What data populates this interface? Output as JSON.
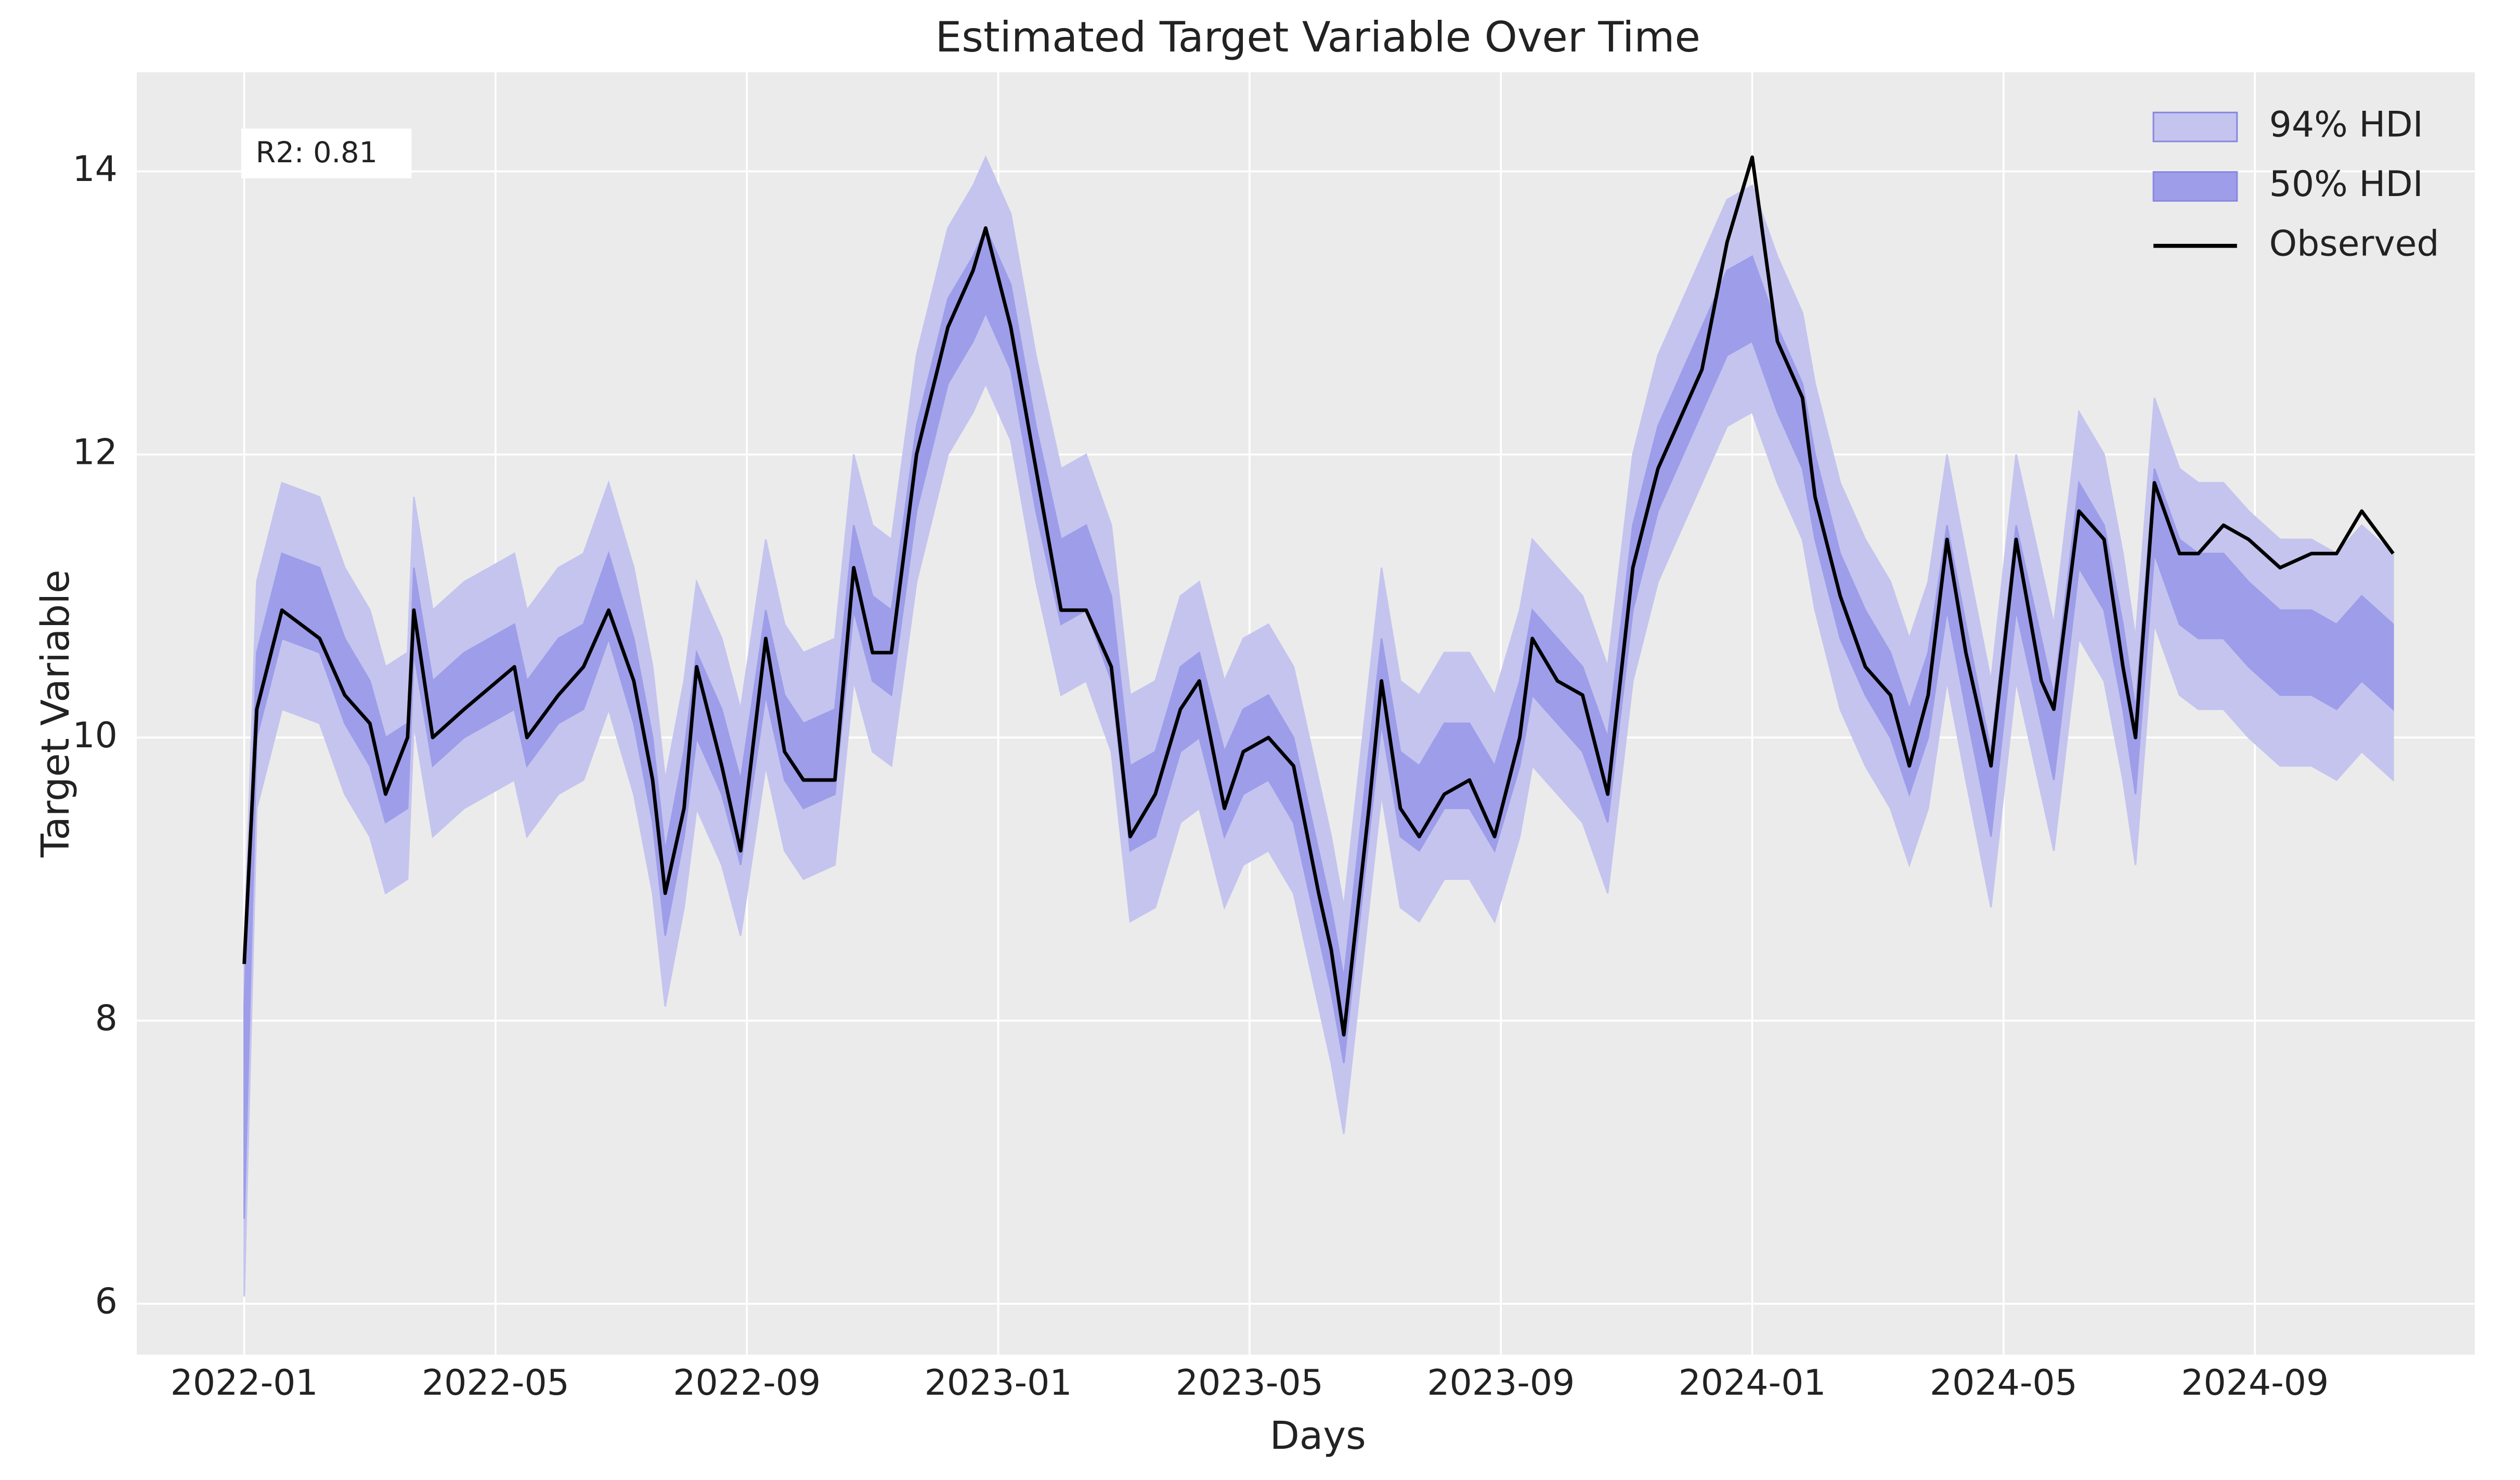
{
  "chart_data": {
    "type": "line-band",
    "title": "Estimated Target Variable Over Time",
    "x_label": "Days",
    "y_label": "Target Variable",
    "annotation": "R2: 0.81",
    "xlim": [
      -1.71,
      35.5
    ],
    "ylim": [
      5.64,
      14.7
    ],
    "xticks": [
      {
        "value": 0,
        "label": "2022-01"
      },
      {
        "value": 4,
        "label": "2022-05"
      },
      {
        "value": 8,
        "label": "2022-09"
      },
      {
        "value": 12,
        "label": "2023-01"
      },
      {
        "value": 16,
        "label": "2023-05"
      },
      {
        "value": 20,
        "label": "2023-09"
      },
      {
        "value": 24,
        "label": "2024-01"
      },
      {
        "value": 28,
        "label": "2024-05"
      },
      {
        "value": 32,
        "label": "2024-09"
      }
    ],
    "yticks": [
      6,
      8,
      10,
      12,
      14
    ],
    "grid": true,
    "legend": "upper right",
    "x": [
      0,
      0.2,
      0.6,
      1.2,
      1.6,
      2,
      2.25,
      2.6,
      2.7,
      3,
      3.5,
      4.3,
      4.5,
      5,
      5.4,
      5.8,
      6.2,
      6.5,
      6.7,
      7,
      7.2,
      7.6,
      7.9,
      8.3,
      8.6,
      8.9,
      9.4,
      9.7,
      10,
      10.3,
      10.7,
      11.2,
      11.6,
      11.8,
      12.2,
      12.6,
      13,
      13.4,
      13.8,
      14.1,
      14.5,
      14.9,
      15.2,
      15.6,
      15.9,
      16.3,
      16.7,
      17.1,
      17.3,
      17.5,
      17.9,
      18.1,
      18.4,
      18.7,
      19.1,
      19.5,
      19.9,
      20.3,
      20.5,
      20.9,
      21.3,
      21.7,
      22.1,
      22.5,
      22.8,
      23.2,
      23.6,
      24,
      24.4,
      24.8,
      25,
      25.4,
      25.8,
      26.2,
      26.5,
      26.8,
      27.1,
      27.4,
      27.8,
      28.2,
      28.6,
      28.8,
      29.2,
      29.6,
      29.9,
      30.1,
      30.4,
      30.8,
      31.1,
      31.5,
      31.9,
      32.4,
      32.9,
      33.3,
      33.7,
      34.2
    ],
    "bands": [
      {
        "name": "94% HDI",
        "color": "#c4c4ef",
        "lower": [
          6.05,
          9.5,
          10.2,
          10.1,
          9.6,
          9.3,
          8.9,
          9.0,
          10.1,
          9.3,
          9.5,
          9.7,
          9.3,
          9.6,
          9.7,
          10.2,
          9.6,
          8.9,
          8.1,
          8.8,
          9.5,
          9.1,
          8.6,
          9.8,
          9.2,
          9.0,
          9.1,
          10.4,
          9.9,
          9.8,
          11.1,
          12.0,
          12.3,
          12.5,
          12.1,
          11.1,
          10.3,
          10.4,
          9.9,
          8.7,
          8.8,
          9.4,
          9.5,
          8.8,
          9.1,
          9.2,
          8.9,
          8.1,
          7.7,
          7.2,
          8.8,
          9.6,
          8.8,
          8.7,
          9.0,
          9.0,
          8.7,
          9.3,
          9.8,
          9.6,
          9.4,
          8.9,
          10.4,
          11.1,
          11.4,
          11.8,
          12.2,
          12.3,
          11.8,
          11.4,
          10.9,
          10.2,
          9.8,
          9.5,
          9.1,
          9.5,
          10.4,
          9.7,
          8.8,
          10.4,
          9.6,
          9.2,
          10.7,
          10.4,
          9.7,
          9.1,
          10.8,
          10.3,
          10.2,
          10.2,
          10.0,
          9.8,
          9.8,
          9.7,
          9.9,
          9.7
        ],
        "upper": [
          8.5,
          11.1,
          11.8,
          11.7,
          11.2,
          10.9,
          10.5,
          10.6,
          11.7,
          10.9,
          11.1,
          11.3,
          10.9,
          11.2,
          11.3,
          11.8,
          11.2,
          10.5,
          9.7,
          10.4,
          11.1,
          10.7,
          10.2,
          11.4,
          10.8,
          10.6,
          10.7,
          12.0,
          11.5,
          11.4,
          12.7,
          13.6,
          13.9,
          14.1,
          13.7,
          12.7,
          11.9,
          12.0,
          11.5,
          10.3,
          10.4,
          11.0,
          11.1,
          10.4,
          10.7,
          10.8,
          10.5,
          9.7,
          9.3,
          8.8,
          10.4,
          11.2,
          10.4,
          10.3,
          10.6,
          10.6,
          10.3,
          10.9,
          11.4,
          11.2,
          11.0,
          10.5,
          12.0,
          12.7,
          13.0,
          13.4,
          13.8,
          13.9,
          13.4,
          13.0,
          12.5,
          11.8,
          11.4,
          11.1,
          10.7,
          11.1,
          12.0,
          11.3,
          10.4,
          12.0,
          11.2,
          10.8,
          12.3,
          12.0,
          11.3,
          10.7,
          12.4,
          11.9,
          11.8,
          11.8,
          11.6,
          11.4,
          11.4,
          11.3,
          11.5,
          11.3
        ]
      },
      {
        "name": "50% HDI",
        "color": "#9d9de9",
        "lower": [
          6.6,
          10.0,
          10.7,
          10.6,
          10.1,
          9.8,
          9.4,
          9.5,
          10.6,
          9.8,
          10.0,
          10.2,
          9.8,
          10.1,
          10.2,
          10.7,
          10.1,
          9.4,
          8.6,
          9.3,
          10.0,
          9.6,
          9.1,
          10.3,
          9.7,
          9.5,
          9.6,
          10.9,
          10.4,
          10.3,
          11.6,
          12.5,
          12.8,
          13.0,
          12.6,
          11.6,
          10.8,
          10.9,
          10.4,
          9.2,
          9.3,
          9.9,
          10.0,
          9.3,
          9.6,
          9.7,
          9.4,
          8.6,
          8.2,
          7.7,
          9.3,
          10.1,
          9.3,
          9.2,
          9.5,
          9.5,
          9.2,
          9.8,
          10.3,
          10.1,
          9.9,
          9.4,
          10.9,
          11.6,
          11.9,
          12.3,
          12.7,
          12.8,
          12.3,
          11.9,
          11.4,
          10.7,
          10.3,
          10.0,
          9.6,
          10.0,
          10.9,
          10.2,
          9.3,
          10.9,
          10.1,
          9.7,
          11.2,
          10.9,
          10.2,
          9.6,
          11.3,
          10.8,
          10.7,
          10.7,
          10.5,
          10.3,
          10.3,
          10.2,
          10.4,
          10.2
        ],
        "upper": [
          8.1,
          10.6,
          11.3,
          11.2,
          10.7,
          10.4,
          10.0,
          10.1,
          11.2,
          10.4,
          10.6,
          10.8,
          10.4,
          10.7,
          10.8,
          11.3,
          10.7,
          10.0,
          9.2,
          9.9,
          10.6,
          10.2,
          9.7,
          10.9,
          10.3,
          10.1,
          10.2,
          11.5,
          11.0,
          10.9,
          12.2,
          13.1,
          13.4,
          13.6,
          13.2,
          12.2,
          11.4,
          11.5,
          11.0,
          9.8,
          9.9,
          10.5,
          10.6,
          9.9,
          10.2,
          10.3,
          10.0,
          9.2,
          8.8,
          8.3,
          9.9,
          10.7,
          9.9,
          9.8,
          10.1,
          10.1,
          9.8,
          10.4,
          10.9,
          10.7,
          10.5,
          10.0,
          11.5,
          12.2,
          12.5,
          12.9,
          13.3,
          13.4,
          12.9,
          12.5,
          12.0,
          11.3,
          10.9,
          10.6,
          10.2,
          10.6,
          11.5,
          10.8,
          9.9,
          11.5,
          10.7,
          10.3,
          11.8,
          11.5,
          10.8,
          10.2,
          11.9,
          11.4,
          11.3,
          11.3,
          11.1,
          10.9,
          10.9,
          10.8,
          11.0,
          10.8
        ]
      }
    ],
    "series": [
      {
        "name": "Observed",
        "color": "#000000",
        "values": [
          8.4,
          10.2,
          10.9,
          10.7,
          10.3,
          10.1,
          9.6,
          10.0,
          10.9,
          10.0,
          10.2,
          10.5,
          10.0,
          10.3,
          10.5,
          10.9,
          10.4,
          9.7,
          8.9,
          9.5,
          10.5,
          9.8,
          9.2,
          10.7,
          9.9,
          9.7,
          9.7,
          11.2,
          10.6,
          10.6,
          12.0,
          12.9,
          13.3,
          13.6,
          12.9,
          11.9,
          10.9,
          10.9,
          10.5,
          9.3,
          9.6,
          10.2,
          10.4,
          9.5,
          9.9,
          10.0,
          9.8,
          8.9,
          8.5,
          7.9,
          9.5,
          10.4,
          9.5,
          9.3,
          9.6,
          9.7,
          9.3,
          10.0,
          10.7,
          10.4,
          10.3,
          9.6,
          11.2,
          11.9,
          12.2,
          12.6,
          13.5,
          14.1,
          12.8,
          12.4,
          11.7,
          11.0,
          10.5,
          10.3,
          9.8,
          10.3,
          11.4,
          10.6,
          9.8,
          11.4,
          10.4,
          10.2,
          11.6,
          11.4,
          10.5,
          10.0,
          11.8,
          11.3,
          11.3,
          11.5,
          11.4,
          11.2,
          11.3,
          11.3,
          11.6,
          11.3
        ]
      }
    ]
  }
}
